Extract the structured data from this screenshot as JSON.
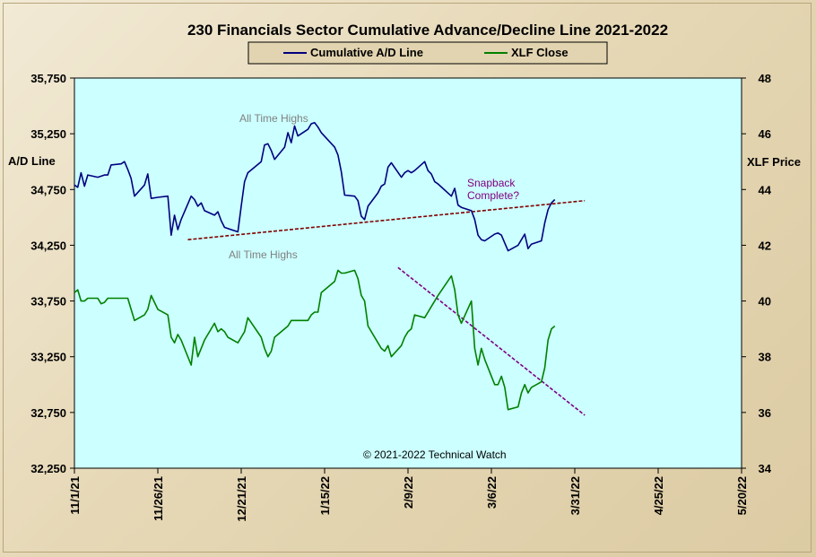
{
  "chart_data": {
    "type": "line",
    "title": "230 Financials  Sector Cumulative  Advance/Decline  Line 2021-2022",
    "ylabel_left": "A/D Line",
    "ylabel_right": "XLF Price",
    "ylim_left": [
      32250,
      35750
    ],
    "yticks_left": [
      "35,750",
      "35,250",
      "34,750",
      "34,250",
      "33,750",
      "33,250",
      "32,750",
      "32,250"
    ],
    "ylim_right": [
      34,
      48
    ],
    "yticks_right": [
      "48",
      "46",
      "44",
      "42",
      "40",
      "38",
      "36",
      "34"
    ],
    "xlim": [
      "2021-11-01",
      "2022-05-20"
    ],
    "xticks": [
      "11/1/21",
      "11/26/21",
      "12/21/21",
      "1/15/22",
      "2/9/22",
      "3/6/22",
      "3/31/22",
      "4/25/22",
      "5/20/22"
    ],
    "legend": {
      "position": "top-center",
      "entries": [
        "Cumulative A/D Line",
        "XLF Close"
      ]
    },
    "colors": {
      "ad_line": "#000080",
      "xlf_line": "#008000",
      "trend_ad": "#800000",
      "trend_xlf": "#800080",
      "plot_bg": "#ccffff",
      "annot_gray": "#808080"
    },
    "series": [
      {
        "name": "Cumulative A/D Line",
        "axis": "left",
        "color": "#000080",
        "points": [
          [
            "2021-11-01",
            34790
          ],
          [
            "2021-11-02",
            34770
          ],
          [
            "2021-11-03",
            34900
          ],
          [
            "2021-11-04",
            34780
          ],
          [
            "2021-11-05",
            34880
          ],
          [
            "2021-11-08",
            34860
          ],
          [
            "2021-11-09",
            34870
          ],
          [
            "2021-11-10",
            34880
          ],
          [
            "2021-11-11",
            34880
          ],
          [
            "2021-11-12",
            34970
          ],
          [
            "2021-11-15",
            34980
          ],
          [
            "2021-11-16",
            35000
          ],
          [
            "2021-11-17",
            34930
          ],
          [
            "2021-11-18",
            34850
          ],
          [
            "2021-11-19",
            34690
          ],
          [
            "2021-11-22",
            34790
          ],
          [
            "2021-11-23",
            34890
          ],
          [
            "2021-11-24",
            34670
          ],
          [
            "2021-11-26",
            34680
          ],
          [
            "2021-11-29",
            34690
          ],
          [
            "2021-11-30",
            34340
          ],
          [
            "2021-12-01",
            34520
          ],
          [
            "2021-12-02",
            34390
          ],
          [
            "2021-12-03",
            34480
          ],
          [
            "2021-12-06",
            34690
          ],
          [
            "2021-12-07",
            34660
          ],
          [
            "2021-12-08",
            34600
          ],
          [
            "2021-12-09",
            34630
          ],
          [
            "2021-12-10",
            34560
          ],
          [
            "2021-12-13",
            34520
          ],
          [
            "2021-12-14",
            34550
          ],
          [
            "2021-12-15",
            34470
          ],
          [
            "2021-12-16",
            34410
          ],
          [
            "2021-12-17",
            34400
          ],
          [
            "2021-12-20",
            34370
          ],
          [
            "2021-12-21",
            34600
          ],
          [
            "2021-12-22",
            34820
          ],
          [
            "2021-12-23",
            34900
          ],
          [
            "2021-12-27",
            35000
          ],
          [
            "2021-12-28",
            35150
          ],
          [
            "2021-12-29",
            35160
          ],
          [
            "2021-12-30",
            35100
          ],
          [
            "2021-12-31",
            35020
          ],
          [
            "2022-01-03",
            35130
          ],
          [
            "2022-01-04",
            35260
          ],
          [
            "2022-01-05",
            35170
          ],
          [
            "2022-01-06",
            35320
          ],
          [
            "2022-01-07",
            35230
          ],
          [
            "2022-01-10",
            35290
          ],
          [
            "2022-01-11",
            35340
          ],
          [
            "2022-01-12",
            35350
          ],
          [
            "2022-01-13",
            35310
          ],
          [
            "2022-01-14",
            35260
          ],
          [
            "2022-01-18",
            35130
          ],
          [
            "2022-01-19",
            35060
          ],
          [
            "2022-01-20",
            34910
          ],
          [
            "2022-01-21",
            34700
          ],
          [
            "2022-01-24",
            34690
          ],
          [
            "2022-01-25",
            34650
          ],
          [
            "2022-01-26",
            34510
          ],
          [
            "2022-01-27",
            34480
          ],
          [
            "2022-01-28",
            34600
          ],
          [
            "2022-01-31",
            34720
          ],
          [
            "2022-02-01",
            34780
          ],
          [
            "2022-02-02",
            34800
          ],
          [
            "2022-02-03",
            34950
          ],
          [
            "2022-02-04",
            34990
          ],
          [
            "2022-02-07",
            34860
          ],
          [
            "2022-02-08",
            34900
          ],
          [
            "2022-02-09",
            34920
          ],
          [
            "2022-02-10",
            34900
          ],
          [
            "2022-02-11",
            34920
          ],
          [
            "2022-02-14",
            35000
          ],
          [
            "2022-02-15",
            34920
          ],
          [
            "2022-02-16",
            34890
          ],
          [
            "2022-02-17",
            34820
          ],
          [
            "2022-02-18",
            34800
          ],
          [
            "2022-02-22",
            34690
          ],
          [
            "2022-02-23",
            34760
          ],
          [
            "2022-02-24",
            34610
          ],
          [
            "2022-02-25",
            34590
          ],
          [
            "2022-02-28",
            34560
          ],
          [
            "2022-03-01",
            34480
          ],
          [
            "2022-03-02",
            34340
          ],
          [
            "2022-03-03",
            34300
          ],
          [
            "2022-03-04",
            34290
          ],
          [
            "2022-03-07",
            34350
          ],
          [
            "2022-03-08",
            34360
          ],
          [
            "2022-03-09",
            34340
          ],
          [
            "2022-03-10",
            34270
          ],
          [
            "2022-03-11",
            34200
          ],
          [
            "2022-03-14",
            34250
          ],
          [
            "2022-03-15",
            34300
          ],
          [
            "2022-03-16",
            34350
          ],
          [
            "2022-03-17",
            34220
          ],
          [
            "2022-03-18",
            34260
          ],
          [
            "2022-03-21",
            34290
          ],
          [
            "2022-03-22",
            34450
          ],
          [
            "2022-03-23",
            34570
          ],
          [
            "2022-03-24",
            34630
          ],
          [
            "2022-03-25",
            34660
          ]
        ]
      },
      {
        "name": "XLF Close",
        "axis": "right",
        "color": "#008000",
        "points": [
          [
            "2021-11-01",
            40.3
          ],
          [
            "2021-11-02",
            40.4
          ],
          [
            "2021-11-03",
            40.0
          ],
          [
            "2021-11-04",
            40.0
          ],
          [
            "2021-11-05",
            40.1
          ],
          [
            "2021-11-08",
            40.1
          ],
          [
            "2021-11-09",
            39.9
          ],
          [
            "2021-11-10",
            39.95
          ],
          [
            "2021-11-11",
            40.1
          ],
          [
            "2021-11-12",
            40.1
          ],
          [
            "2021-11-15",
            40.1
          ],
          [
            "2021-11-16",
            40.1
          ],
          [
            "2021-11-17",
            40.1
          ],
          [
            "2021-11-18",
            39.7
          ],
          [
            "2021-11-19",
            39.3
          ],
          [
            "2021-11-22",
            39.5
          ],
          [
            "2021-11-23",
            39.7
          ],
          [
            "2021-11-24",
            40.2
          ],
          [
            "2021-11-26",
            39.7
          ],
          [
            "2021-11-29",
            39.5
          ],
          [
            "2021-11-30",
            38.7
          ],
          [
            "2021-12-01",
            38.5
          ],
          [
            "2021-12-02",
            38.8
          ],
          [
            "2021-12-03",
            38.6
          ],
          [
            "2021-12-06",
            37.7
          ],
          [
            "2021-12-07",
            38.7
          ],
          [
            "2021-12-08",
            38.0
          ],
          [
            "2021-12-09",
            38.3
          ],
          [
            "2021-12-10",
            38.6
          ],
          [
            "2021-12-13",
            39.2
          ],
          [
            "2021-12-14",
            38.9
          ],
          [
            "2021-12-15",
            39.0
          ],
          [
            "2021-12-16",
            38.9
          ],
          [
            "2021-12-17",
            38.7
          ],
          [
            "2021-12-20",
            38.5
          ],
          [
            "2021-12-21",
            38.7
          ],
          [
            "2021-12-22",
            38.9
          ],
          [
            "2021-12-23",
            39.4
          ],
          [
            "2021-12-27",
            38.7
          ],
          [
            "2021-12-28",
            38.3
          ],
          [
            "2021-12-29",
            38.0
          ],
          [
            "2021-12-30",
            38.2
          ],
          [
            "2021-12-31",
            38.7
          ],
          [
            "2022-01-03",
            39.0
          ],
          [
            "2022-01-04",
            39.1
          ],
          [
            "2022-01-05",
            39.3
          ],
          [
            "2022-01-06",
            39.3
          ],
          [
            "2022-01-07",
            39.3
          ],
          [
            "2022-01-10",
            39.3
          ],
          [
            "2022-01-11",
            39.5
          ],
          [
            "2022-01-12",
            39.6
          ],
          [
            "2022-01-13",
            39.6
          ],
          [
            "2022-01-14",
            40.3
          ],
          [
            "2022-01-18",
            40.7
          ],
          [
            "2022-01-19",
            41.1
          ],
          [
            "2022-01-20",
            41.0
          ],
          [
            "2022-01-21",
            41.0
          ],
          [
            "2022-01-24",
            41.1
          ],
          [
            "2022-01-25",
            40.8
          ],
          [
            "2022-01-26",
            40.2
          ],
          [
            "2022-01-27",
            40.0
          ],
          [
            "2022-01-28",
            39.1
          ],
          [
            "2022-01-31",
            38.5
          ],
          [
            "2022-02-01",
            38.3
          ],
          [
            "2022-02-02",
            38.2
          ],
          [
            "2022-02-03",
            38.4
          ],
          [
            "2022-02-04",
            38.0
          ],
          [
            "2022-02-07",
            38.4
          ],
          [
            "2022-02-08",
            38.7
          ],
          [
            "2022-02-09",
            38.9
          ],
          [
            "2022-02-10",
            39.0
          ],
          [
            "2022-02-11",
            39.5
          ],
          [
            "2022-02-14",
            39.4
          ],
          [
            "2022-02-15",
            39.6
          ],
          [
            "2022-02-16",
            39.8
          ],
          [
            "2022-02-17",
            40.0
          ],
          [
            "2022-02-18",
            40.2
          ],
          [
            "2022-02-22",
            40.9
          ],
          [
            "2022-02-23",
            40.4
          ],
          [
            "2022-02-24",
            39.5
          ],
          [
            "2022-02-25",
            39.2
          ],
          [
            "2022-02-28",
            40.0
          ],
          [
            "2022-03-01",
            38.3
          ],
          [
            "2022-03-02",
            37.7
          ],
          [
            "2022-03-03",
            38.3
          ],
          [
            "2022-03-04",
            37.9
          ],
          [
            "2022-03-07",
            37.0
          ],
          [
            "2022-03-08",
            37.0
          ],
          [
            "2022-03-09",
            37.3
          ],
          [
            "2022-03-10",
            36.9
          ],
          [
            "2022-03-11",
            36.1
          ],
          [
            "2022-03-14",
            36.2
          ],
          [
            "2022-03-15",
            36.7
          ],
          [
            "2022-03-16",
            37.0
          ],
          [
            "2022-03-17",
            36.7
          ],
          [
            "2022-03-18",
            36.9
          ],
          [
            "2022-03-21",
            37.1
          ],
          [
            "2022-03-22",
            37.6
          ],
          [
            "2022-03-23",
            38.6
          ],
          [
            "2022-03-24",
            39.0
          ],
          [
            "2022-03-25",
            39.1
          ]
        ]
      }
    ],
    "trendlines": [
      {
        "axis": "left",
        "from": [
          "2021-12-05",
          34300
        ],
        "to": [
          "2022-04-03",
          34650
        ],
        "color": "#800000"
      },
      {
        "axis": "right",
        "from": [
          "2022-02-06",
          41.2
        ],
        "to": [
          "2022-04-03",
          35.9
        ],
        "color": "#800080"
      }
    ],
    "annotations": [
      {
        "text": "All Time Highs",
        "color": "#808080"
      },
      {
        "text": "All Time Highs",
        "color": "#808080"
      },
      {
        "text": "Snapback",
        "color": "#800080"
      },
      {
        "text": "Complete?",
        "color": "#800080"
      },
      {
        "text": "© 2021-2022  Technical Watch",
        "color": "#000000"
      }
    ],
    "grid": false
  }
}
